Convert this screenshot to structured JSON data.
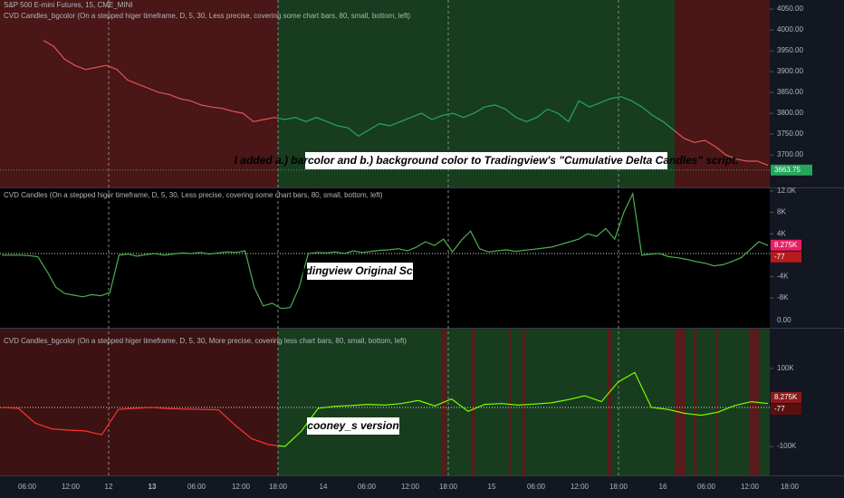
{
  "header": {
    "symbol": "S&P 500 E-mini Futures, 15, CME_MINI",
    "top_study": "CVD Candles_bgcolor (On a stepped higer timeframe, D, 5, 30, Less precise, covering some chart bars, 80, small, bottom, left)",
    "middle_study": "CVD Candles (On a stepped higer timeframe, D, 5, 30, Less precise, covering some chart bars, 80, small, bottom, left)",
    "bottom_study": "CVD Candles_bgcolor (On a stepped higer timeframe, D, 5, 30, More precise, covering less chart bars, 80, small, bottom, left)"
  },
  "annotations": {
    "top": "I added a.) barcolor and b.) background color to Tradingview's \"Cumulative Delta Candles\" script.",
    "middle": "Tradingview Original Script",
    "bottom": "cooney_s version"
  },
  "price_pane": {
    "ylim": [
      3622,
      4072
    ],
    "yticks": [
      {
        "value": 4050,
        "label": "4050.00"
      },
      {
        "value": 4000,
        "label": "4000.00"
      },
      {
        "value": 3950,
        "label": "3950.00"
      },
      {
        "value": 3900,
        "label": "3900.00"
      },
      {
        "value": 3850,
        "label": "3850.00"
      },
      {
        "value": 3800,
        "label": "3800.00"
      },
      {
        "value": 3750,
        "label": "3750.00"
      },
      {
        "value": 3700,
        "label": "3700.00"
      }
    ],
    "last": {
      "value": 3663.75,
      "label": "3663.75"
    },
    "values": [
      3975,
      3960,
      3930,
      3915,
      3905,
      3910,
      3915,
      3905,
      3880,
      3870,
      3860,
      3850,
      3845,
      3835,
      3830,
      3820,
      3815,
      3812,
      3805,
      3800,
      3780,
      3785,
      3790,
      3785,
      3790,
      3780,
      3790,
      3780,
      3770,
      3765,
      3745,
      3760,
      3775,
      3770,
      3780,
      3790,
      3800,
      3785,
      3795,
      3800,
      3790,
      3800,
      3815,
      3820,
      3810,
      3790,
      3780,
      3790,
      3810,
      3800,
      3780,
      3830,
      3815,
      3825,
      3835,
      3840,
      3830,
      3815,
      3795,
      3780,
      3760,
      3740,
      3730,
      3735,
      3720,
      3700,
      3690,
      3685,
      3685,
      3675
    ]
  },
  "middle_pane": {
    "ylim": [
      -13600,
      12500
    ],
    "color": "#4caf50",
    "yticks": [
      {
        "value": 12000,
        "label": "12.0K"
      },
      {
        "value": 8000,
        "label": "8K"
      },
      {
        "value": 4000,
        "label": "4K"
      },
      {
        "value": -4000,
        "label": "-4K"
      },
      {
        "value": -8000,
        "label": "-8K"
      }
    ],
    "badges": [
      {
        "value": 8275,
        "label": "8.275K",
        "color": "#e91e63"
      },
      {
        "value": -77,
        "label": "-77",
        "color": "#b71c1c"
      }
    ],
    "sub_label": "0.00",
    "values": [
      0,
      0,
      0,
      -100,
      -300,
      -3000,
      -6000,
      -7200,
      -7500,
      -7800,
      -7400,
      -7600,
      -7000,
      0,
      200,
      -200,
      100,
      300,
      0,
      200,
      400,
      300,
      500,
      200,
      400,
      600,
      500,
      800,
      -6000,
      -9500,
      -9000,
      -10000,
      -9800,
      -6000,
      300,
      500,
      400,
      600,
      300,
      800,
      500,
      700,
      900,
      1000,
      1200,
      800,
      1500,
      2500,
      1800,
      3000,
      600,
      2800,
      4500,
      1200,
      600,
      800,
      1000,
      700,
      900,
      1100,
      1300,
      1500,
      2000,
      2500,
      3000,
      4000,
      3500,
      5000,
      3000,
      8000,
      11500,
      0,
      200,
      300,
      -300,
      -500,
      -800,
      -1200,
      -1500,
      -2000,
      -1800,
      -1200,
      -500,
      1000,
      2500,
      1800
    ]
  },
  "bottom_pane": {
    "ylim": [
      -174000,
      202000
    ],
    "yticks": [
      {
        "value": 100000,
        "label": "100K"
      },
      {
        "value": -100000,
        "label": "-100K"
      }
    ],
    "badges": [
      {
        "value": 8275,
        "label": "8.275K",
        "color": "#8b1a1a"
      },
      {
        "value": -77,
        "label": "-77",
        "color": "#5a1010"
      }
    ],
    "values": [
      0,
      -2000,
      -40000,
      -55000,
      -58000,
      -60000,
      -70000,
      -5000,
      -2000,
      0,
      -3000,
      -4000,
      -5000,
      -6000,
      -45000,
      -80000,
      -95000,
      -100000,
      -60000,
      -2000,
      3000,
      5000,
      8000,
      6000,
      10000,
      18000,
      4000,
      22000,
      -10000,
      8000,
      10000,
      6000,
      9000,
      12000,
      20000,
      30000,
      15000,
      65000,
      90000,
      0,
      -5000,
      -15000,
      -20000,
      -12000,
      5000,
      15000,
      10000
    ]
  },
  "time_axis": [
    "06:00",
    "12:00",
    "12",
    "13",
    "06:00",
    "12:00",
    "18:00",
    "14",
    "06:00",
    "12:00",
    "18:00",
    "15",
    "06:00",
    "12:00",
    "18:00",
    "16",
    "06:00",
    "12:00",
    "18:00"
  ]
}
